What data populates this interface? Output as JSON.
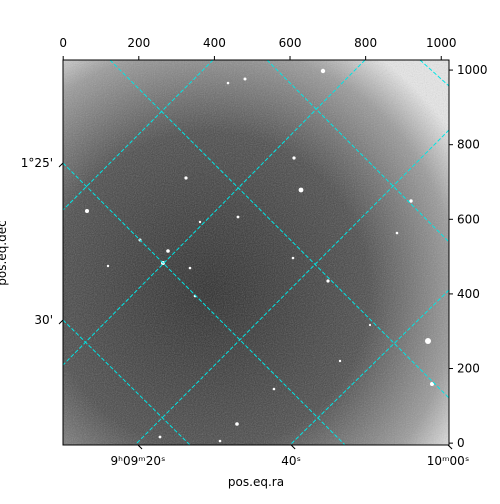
{
  "chart_data": {
    "type": "image",
    "xlabel": "pos.eq.ra",
    "ylabel": "pos.eq.dec",
    "xlim": [
      -0.5,
      1020.5
    ],
    "ylim": [
      -5,
      1027
    ],
    "xticks": [
      0,
      200,
      400,
      600,
      800,
      1000
    ],
    "yticks": [
      0,
      200,
      400,
      600,
      800,
      1000
    ],
    "wcs_xticks": [
      {
        "value": 198,
        "label": "9ʰ09ᵐ20ˢ"
      },
      {
        "value": 603,
        "label": "40ˢ"
      },
      {
        "value": 1018,
        "label": "10ᵐ00ˢ"
      }
    ],
    "wcs_yticks": [
      {
        "value": 751,
        "label": "1°25'"
      },
      {
        "value": 330,
        "label": "30'"
      }
    ]
  }
}
